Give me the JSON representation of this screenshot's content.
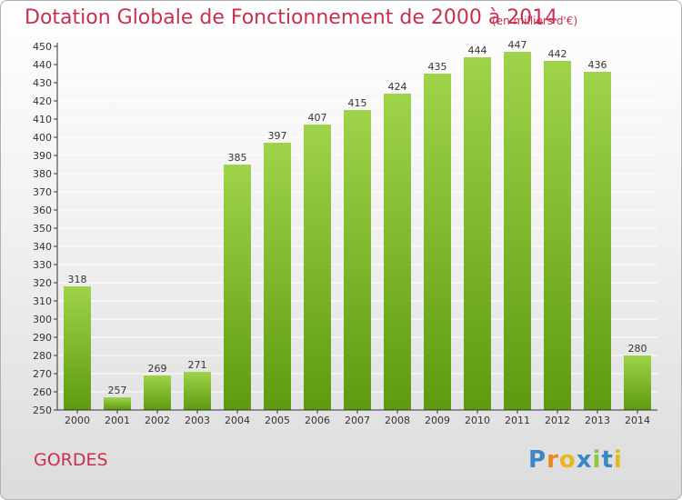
{
  "header": {
    "title": "Dotation Globale de Fonctionnement de 2000 à 2014",
    "subtitle": "(en milliers d'€)"
  },
  "footer": {
    "commune": "GORDES",
    "brand": "Proxiti"
  },
  "chart_data": {
    "type": "bar",
    "categories": [
      "2000",
      "2001",
      "2002",
      "2003",
      "2004",
      "2005",
      "2006",
      "2007",
      "2008",
      "2009",
      "2010",
      "2011",
      "2012",
      "2013",
      "2014"
    ],
    "values": [
      318,
      257,
      269,
      271,
      385,
      397,
      407,
      415,
      424,
      435,
      444,
      447,
      442,
      436,
      280
    ],
    "ylim": [
      250,
      450
    ],
    "ytick_step": 10,
    "grid": true,
    "legend": "none",
    "colors": {
      "bar_top": "#9fd34a",
      "bar_bottom": "#5e9a10",
      "axis": "#333333",
      "grid": "#ffffff"
    }
  }
}
